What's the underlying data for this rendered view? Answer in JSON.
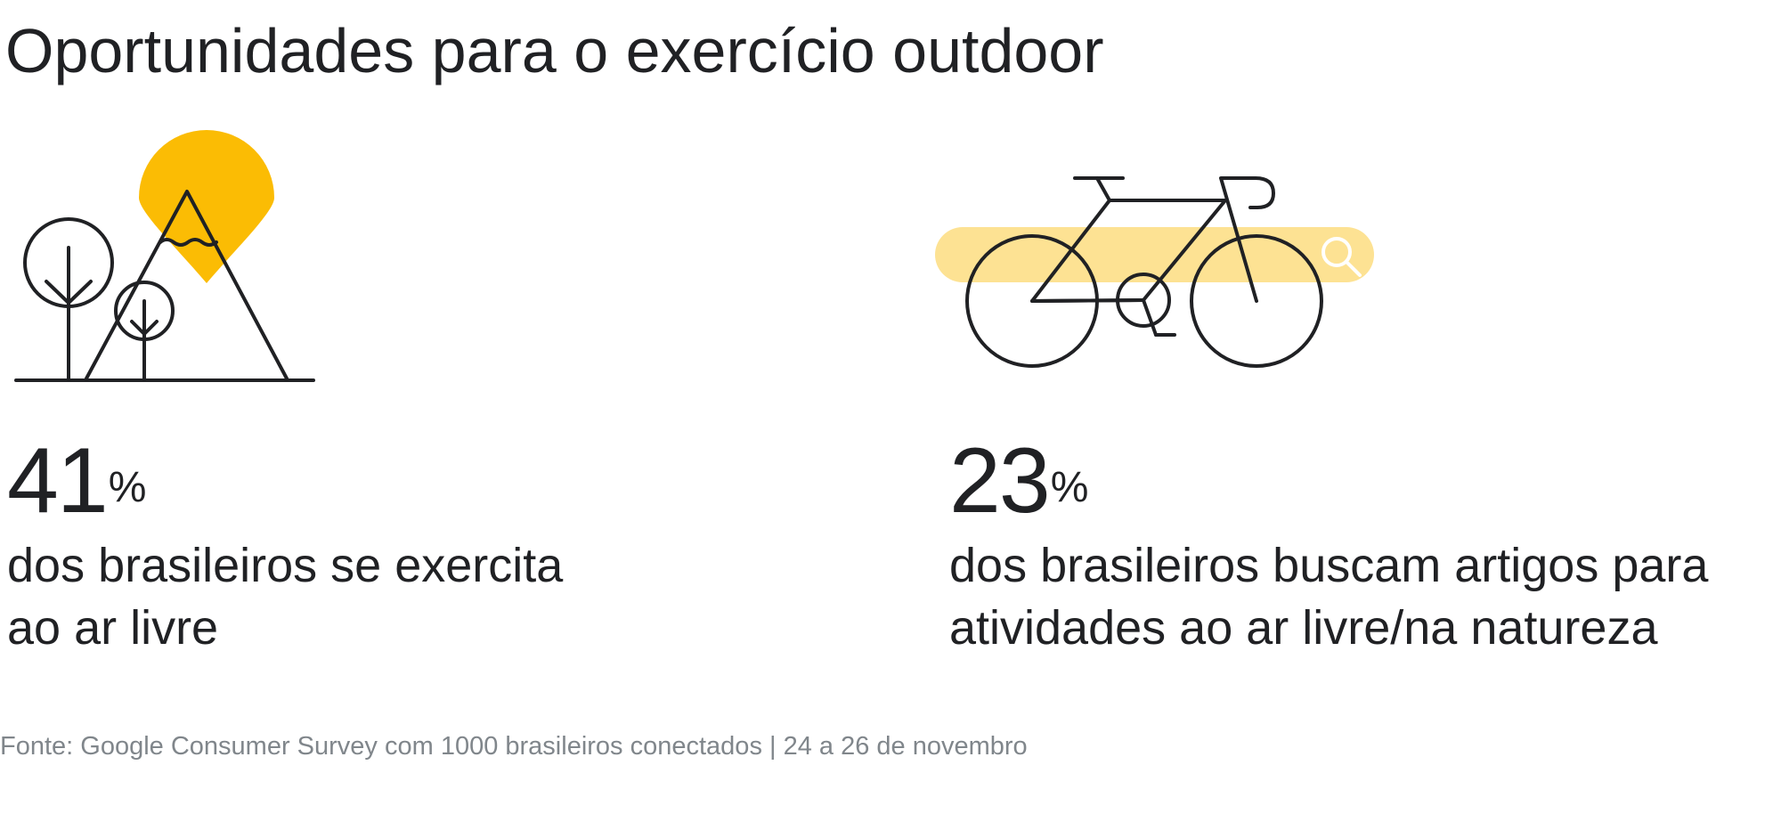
{
  "title": "Oportunidades para o exercício outdoor",
  "colors": {
    "text": "#202124",
    "accent_yellow": "#FBBC04",
    "light_yellow": "#FDE293",
    "muted": "#80868b"
  },
  "stats": [
    {
      "value": "41",
      "unit": "%",
      "description_lines": [
        "dos brasileiros se exercita",
        "ao ar livre"
      ],
      "icon": "mountain-trees-location-pin-icon"
    },
    {
      "value": "23",
      "unit": "%",
      "description_lines": [
        "dos brasileiros buscam artigos para",
        "atividades ao ar livre/na natureza"
      ],
      "icon": "bicycle-search-bar-icon"
    }
  ],
  "source": "Fonte: Google Consumer Survey com 1000 brasileiros conectados | 24 a 26 de novembro"
}
